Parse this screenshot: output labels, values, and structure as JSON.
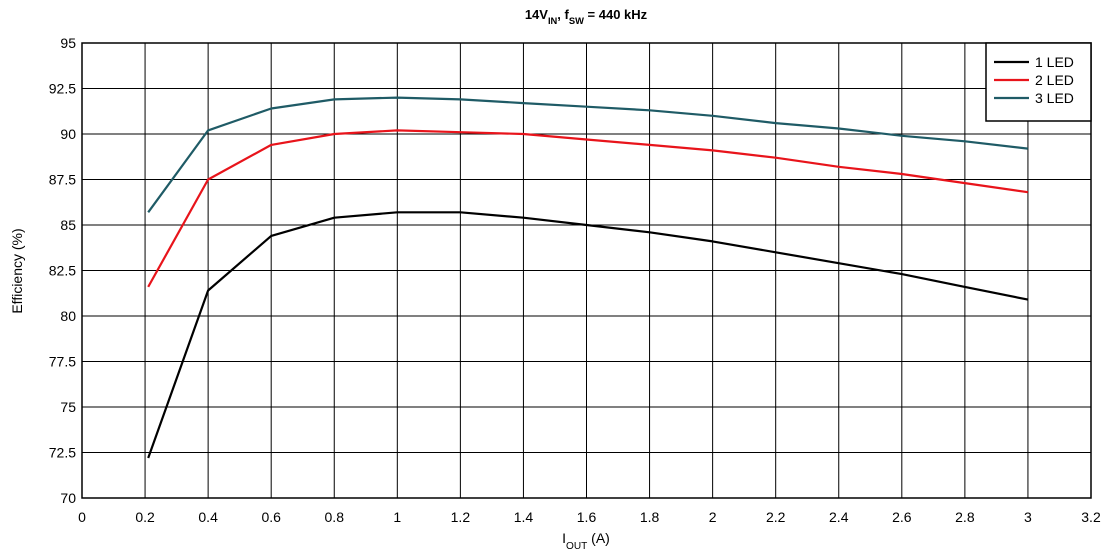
{
  "chart_data": {
    "type": "line",
    "title": {
      "parts": [
        {
          "text": "14V",
          "sub": false
        },
        {
          "text": "IN",
          "sub": true
        },
        {
          "text": ", f",
          "sub": false
        },
        {
          "text": "SW",
          "sub": true
        },
        {
          "text": " = 440 kHz",
          "sub": false
        }
      ]
    },
    "xlabel": {
      "parts": [
        {
          "text": "I",
          "sub": false
        },
        {
          "text": "OUT",
          "sub": true
        },
        {
          "text": " (A)",
          "sub": false
        }
      ]
    },
    "ylabel": "Efficiency (%)",
    "xlim": [
      0,
      3.2
    ],
    "ylim": [
      70,
      95
    ],
    "xticks": [
      "0",
      "0.2",
      "0.4",
      "0.6",
      "0.8",
      "1",
      "1.2",
      "1.4",
      "1.6",
      "1.8",
      "2",
      "2.2",
      "2.4",
      "2.6",
      "2.8",
      "3",
      "3.2"
    ],
    "yticks": [
      "70",
      "72.5",
      "75",
      "77.5",
      "80",
      "82.5",
      "85",
      "87.5",
      "90",
      "92.5",
      "95"
    ],
    "grid": true,
    "legend_position": "top-right",
    "x": [
      0.21,
      0.4,
      0.6,
      0.8,
      1.0,
      1.2,
      1.4,
      1.6,
      1.8,
      2.0,
      2.2,
      2.4,
      2.6,
      2.8,
      3.0
    ],
    "series": [
      {
        "name": "1 LED",
        "color": "#000000",
        "values": [
          72.2,
          81.4,
          84.4,
          85.4,
          85.7,
          85.7,
          85.4,
          85.0,
          84.6,
          84.1,
          83.5,
          82.9,
          82.3,
          81.6,
          80.9
        ]
      },
      {
        "name": "2 LED",
        "color": "#e8141b",
        "values": [
          81.6,
          87.5,
          89.4,
          90.0,
          90.2,
          90.1,
          90.0,
          89.7,
          89.4,
          89.1,
          88.7,
          88.2,
          87.8,
          87.3,
          86.8
        ]
      },
      {
        "name": "3 LED",
        "color": "#1f5b66",
        "values": [
          85.7,
          90.2,
          91.4,
          91.9,
          92.0,
          91.9,
          91.7,
          91.5,
          91.3,
          91.0,
          90.6,
          90.3,
          89.9,
          89.6,
          89.2
        ]
      }
    ]
  }
}
